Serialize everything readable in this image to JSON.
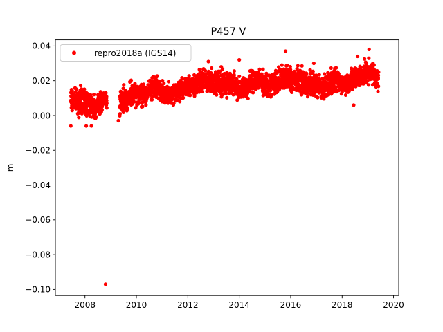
{
  "chart_data": {
    "type": "scatter",
    "title": "P457 V",
    "xlabel": "",
    "ylabel": "m",
    "xlim": [
      2006.85,
      2020.2
    ],
    "ylim": [
      -0.1035,
      0.0435
    ],
    "xticks": [
      2008,
      2010,
      2012,
      2014,
      2016,
      2018,
      2020
    ],
    "xtick_labels": [
      "2008",
      "2010",
      "2012",
      "2014",
      "2016",
      "2018",
      "2020"
    ],
    "yticks": [
      0.04,
      0.02,
      0.0,
      -0.02,
      -0.04,
      -0.06,
      -0.08,
      -0.1
    ],
    "ytick_labels": [
      "0.04",
      "0.02",
      "0.00",
      "−0.02",
      "−0.04",
      "−0.06",
      "−0.08",
      "−0.10"
    ],
    "grid": false,
    "legend_position": "top-left",
    "series": [
      {
        "name": "repro2018a (IGS14)",
        "color": "#ff0000",
        "marker": "circle",
        "x": [
          2007.45,
          2007.5,
          2007.55,
          2007.6,
          2007.7,
          2007.8,
          2007.9,
          2008.0,
          2008.1,
          2008.2,
          2008.3,
          2008.4,
          2008.5,
          2008.6,
          2008.7,
          2008.8,
          2008.85,
          2009.4,
          2009.5,
          2009.6,
          2009.7,
          2009.8,
          2009.9,
          2010.0,
          2010.1,
          2010.2,
          2010.3,
          2010.4,
          2010.5,
          2010.6,
          2010.7,
          2010.8,
          2010.9,
          2011.0,
          2011.1,
          2011.2,
          2011.3,
          2011.4,
          2011.5,
          2011.6,
          2011.7,
          2011.8,
          2011.9,
          2012.0,
          2012.1,
          2012.2,
          2012.3,
          2012.4,
          2012.5,
          2012.6,
          2012.7,
          2012.8,
          2012.9,
          2013.0,
          2013.1,
          2013.2,
          2013.3,
          2013.4,
          2013.5,
          2013.6,
          2013.7,
          2013.8,
          2013.9,
          2014.0,
          2014.1,
          2014.2,
          2014.3,
          2014.4,
          2014.5,
          2014.6,
          2014.7,
          2014.8,
          2014.9,
          2015.0,
          2015.1,
          2015.2,
          2015.3,
          2015.4,
          2015.5,
          2015.6,
          2015.7,
          2015.8,
          2015.9,
          2016.0,
          2016.1,
          2016.2,
          2016.3,
          2016.4,
          2016.5,
          2016.6,
          2016.7,
          2016.8,
          2016.9,
          2017.0,
          2017.1,
          2017.2,
          2017.3,
          2017.4,
          2017.5,
          2017.6,
          2017.7,
          2017.8,
          2017.9,
          2018.0,
          2018.1,
          2018.2,
          2018.3,
          2018.4,
          2018.5,
          2018.6,
          2018.7,
          2018.8,
          2018.9,
          2019.0,
          2019.1,
          2019.2,
          2019.3,
          2019.4
        ],
        "y": [
          0.008,
          0.011,
          0.012,
          0.009,
          0.007,
          0.01,
          0.006,
          0.003,
          0.008,
          0.01,
          0.007,
          0.001,
          0.005,
          0.009,
          0.012,
          0.011,
          0.007,
          0.004,
          0.01,
          0.012,
          0.008,
          0.011,
          0.013,
          0.014,
          0.009,
          0.005,
          0.01,
          0.013,
          0.015,
          0.018,
          0.019,
          0.017,
          0.012,
          0.008,
          0.009,
          0.011,
          0.012,
          0.01,
          0.013,
          0.016,
          0.018,
          0.015,
          0.017,
          0.019,
          0.016,
          0.014,
          0.018,
          0.021,
          0.023,
          0.024,
          0.022,
          0.02,
          0.017,
          0.015,
          0.019,
          0.022,
          0.023,
          0.021,
          0.018,
          0.016,
          0.02,
          0.022,
          0.021,
          0.019,
          0.014,
          0.013,
          0.017,
          0.021,
          0.023,
          0.024,
          0.022,
          0.018,
          0.016,
          0.015,
          0.013,
          0.016,
          0.019,
          0.022,
          0.021,
          0.02,
          0.024,
          0.026,
          0.025,
          0.022,
          0.02,
          0.019,
          0.024,
          0.022,
          0.021,
          0.02,
          0.019,
          0.016,
          0.012,
          0.011,
          0.014,
          0.016,
          0.018,
          0.019,
          0.018,
          0.02,
          0.022,
          0.024,
          0.02,
          0.018,
          0.017,
          0.016,
          0.016,
          0.015,
          0.017,
          0.02,
          0.023,
          0.025,
          0.027,
          0.026,
          0.028,
          0.03,
          0.025,
          0.021
        ]
      },
      {
        "name": "",
        "color": "#ff0000",
        "marker": "circle",
        "x": [
          2007.45,
          2008.05,
          2008.25,
          2008.8,
          2009.3,
          2012.8,
          2013.3,
          2014.0,
          2015.8,
          2016.9,
          2018.45,
          2018.6,
          2019.05
        ],
        "y": [
          -0.006,
          -0.006,
          -0.006,
          -0.097,
          -0.003,
          0.031,
          0.028,
          0.032,
          0.037,
          0.03,
          0.006,
          0.034,
          0.038
        ]
      }
    ],
    "band": {
      "x": [
        2007.45,
        2007.8,
        2008.2,
        2008.4,
        2008.85,
        2009.4,
        2009.8,
        2010.3,
        2010.8,
        2011.2,
        2011.7,
        2012.2,
        2012.7,
        2013.2,
        2013.6,
        2014.1,
        2014.7,
        2015.1,
        2015.8,
        2016.3,
        2016.8,
        2017.2,
        2017.7,
        2018.1,
        2018.6,
        2019.1,
        2019.4
      ],
      "upper": [
        0.018,
        0.019,
        0.018,
        0.014,
        0.018,
        0.018,
        0.021,
        0.021,
        0.026,
        0.02,
        0.024,
        0.026,
        0.03,
        0.029,
        0.028,
        0.025,
        0.03,
        0.026,
        0.033,
        0.03,
        0.029,
        0.026,
        0.03,
        0.026,
        0.032,
        0.035,
        0.029
      ],
      "lower": [
        0.0,
        -0.002,
        -0.004,
        -0.004,
        0.002,
        -0.002,
        0.002,
        0.004,
        0.008,
        0.002,
        0.006,
        0.008,
        0.011,
        0.009,
        0.009,
        0.006,
        0.011,
        0.008,
        0.011,
        0.01,
        0.008,
        0.006,
        0.01,
        0.01,
        0.013,
        0.015,
        0.013
      ]
    }
  }
}
